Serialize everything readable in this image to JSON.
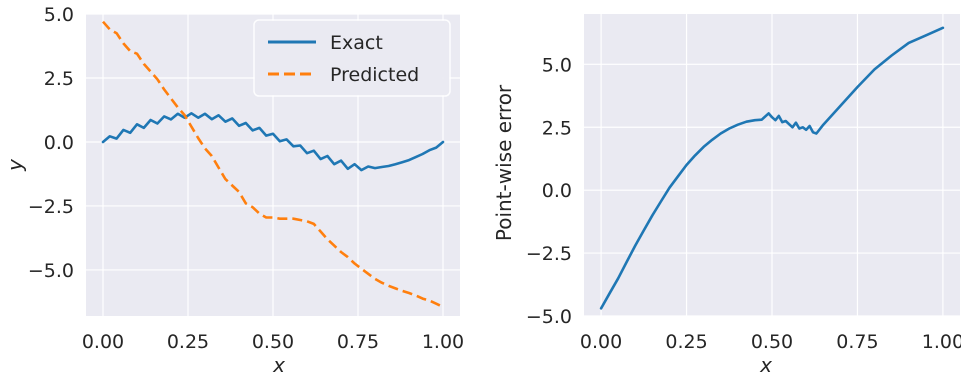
{
  "chart_data": [
    {
      "type": "line",
      "xlabel": "x",
      "ylabel": "y",
      "xlim": [
        -0.05,
        1.05
      ],
      "ylim": [
        -6.8,
        5.0
      ],
      "xticks": [
        0.0,
        0.25,
        0.5,
        0.75,
        1.0
      ],
      "xtick_labels": [
        "0.00",
        "0.25",
        "0.50",
        "0.75",
        "1.00"
      ],
      "yticks": [
        5.0,
        2.5,
        0.0,
        -2.5,
        -5.0
      ],
      "ytick_labels": [
        "5.0",
        "2.5",
        "0.0",
        "−2.5",
        "−5.0"
      ],
      "grid": true,
      "legend_position": "top-right",
      "series": [
        {
          "name": "Exact",
          "color": "#1f77b4",
          "style": "solid",
          "x": [
            0.0,
            0.02,
            0.04,
            0.06,
            0.08,
            0.1,
            0.12,
            0.14,
            0.16,
            0.18,
            0.2,
            0.22,
            0.24,
            0.26,
            0.28,
            0.3,
            0.32,
            0.34,
            0.36,
            0.38,
            0.4,
            0.42,
            0.44,
            0.46,
            0.48,
            0.5,
            0.52,
            0.54,
            0.56,
            0.58,
            0.6,
            0.62,
            0.64,
            0.66,
            0.68,
            0.7,
            0.72,
            0.74,
            0.76,
            0.78,
            0.8,
            0.82,
            0.84,
            0.86,
            0.88,
            0.9,
            0.92,
            0.94,
            0.96,
            0.98,
            1.0
          ],
          "y": [
            0.0,
            0.22,
            0.13,
            0.47,
            0.36,
            0.69,
            0.55,
            0.86,
            0.72,
            1.0,
            0.88,
            1.1,
            0.95,
            1.12,
            0.95,
            1.1,
            0.89,
            1.04,
            0.79,
            0.92,
            0.63,
            0.74,
            0.45,
            0.55,
            0.25,
            0.32,
            0.03,
            0.1,
            -0.17,
            -0.14,
            -0.44,
            -0.34,
            -0.67,
            -0.55,
            -0.87,
            -0.73,
            -1.05,
            -0.87,
            -1.1,
            -0.96,
            -1.02,
            -0.98,
            -0.94,
            -0.87,
            -0.79,
            -0.71,
            -0.59,
            -0.47,
            -0.32,
            -0.22,
            0.0
          ]
        },
        {
          "name": "Predicted",
          "color": "#ff7f0e",
          "style": "dashed",
          "x": [
            0.0,
            0.02,
            0.04,
            0.06,
            0.08,
            0.1,
            0.12,
            0.14,
            0.16,
            0.18,
            0.2,
            0.22,
            0.24,
            0.26,
            0.28,
            0.3,
            0.32,
            0.34,
            0.36,
            0.38,
            0.4,
            0.42,
            0.44,
            0.46,
            0.48,
            0.5,
            0.52,
            0.54,
            0.56,
            0.58,
            0.6,
            0.62,
            0.64,
            0.66,
            0.68,
            0.7,
            0.72,
            0.74,
            0.76,
            0.78,
            0.8,
            0.82,
            0.84,
            0.86,
            0.88,
            0.9,
            0.92,
            0.94,
            0.96,
            0.98,
            1.0
          ],
          "y": [
            4.7,
            4.4,
            4.25,
            3.85,
            3.55,
            3.45,
            3.05,
            2.75,
            2.45,
            2.05,
            1.7,
            1.35,
            1.05,
            0.6,
            0.15,
            -0.25,
            -0.55,
            -1.0,
            -1.45,
            -1.7,
            -1.95,
            -2.4,
            -2.55,
            -2.8,
            -2.95,
            -2.95,
            -3.0,
            -3.0,
            -3.0,
            -3.05,
            -3.1,
            -3.2,
            -3.5,
            -3.8,
            -4.05,
            -4.3,
            -4.5,
            -4.75,
            -4.95,
            -5.15,
            -5.35,
            -5.5,
            -5.62,
            -5.72,
            -5.82,
            -5.9,
            -6.0,
            -6.12,
            -6.2,
            -6.32,
            -6.45
          ]
        }
      ]
    },
    {
      "type": "line",
      "xlabel": "x",
      "ylabel": "Point-wise error",
      "xlim": [
        -0.05,
        1.05
      ],
      "ylim": [
        -5.0,
        7.0
      ],
      "xticks": [
        0.0,
        0.25,
        0.5,
        0.75,
        1.0
      ],
      "xtick_labels": [
        "0.00",
        "0.25",
        "0.50",
        "0.75",
        "1.00"
      ],
      "yticks": [
        5.0,
        2.5,
        0.0,
        -2.5,
        -5.0
      ],
      "ytick_labels": [
        "5.0",
        "2.5",
        "0.0",
        "−2.5",
        "−5.0"
      ],
      "grid": true,
      "series": [
        {
          "color": "#1f77b4",
          "style": "solid",
          "x": [
            0.0,
            0.025,
            0.05,
            0.075,
            0.1,
            0.125,
            0.15,
            0.175,
            0.2,
            0.225,
            0.25,
            0.275,
            0.3,
            0.325,
            0.35,
            0.375,
            0.4,
            0.425,
            0.45,
            0.47,
            0.49,
            0.5,
            0.51,
            0.52,
            0.53,
            0.54,
            0.55,
            0.56,
            0.57,
            0.58,
            0.59,
            0.6,
            0.61,
            0.62,
            0.63,
            0.65,
            0.7,
            0.75,
            0.8,
            0.85,
            0.9,
            0.95,
            1.0
          ],
          "y": [
            -4.7,
            -4.1,
            -3.5,
            -2.85,
            -2.2,
            -1.6,
            -1.0,
            -0.45,
            0.1,
            0.55,
            1.0,
            1.38,
            1.72,
            2.0,
            2.25,
            2.45,
            2.6,
            2.72,
            2.78,
            2.8,
            3.05,
            2.9,
            2.78,
            2.95,
            2.7,
            2.75,
            2.62,
            2.5,
            2.68,
            2.45,
            2.5,
            2.4,
            2.55,
            2.3,
            2.25,
            2.6,
            3.35,
            4.1,
            4.8,
            5.35,
            5.85,
            6.15,
            6.45
          ]
        }
      ]
    }
  ]
}
